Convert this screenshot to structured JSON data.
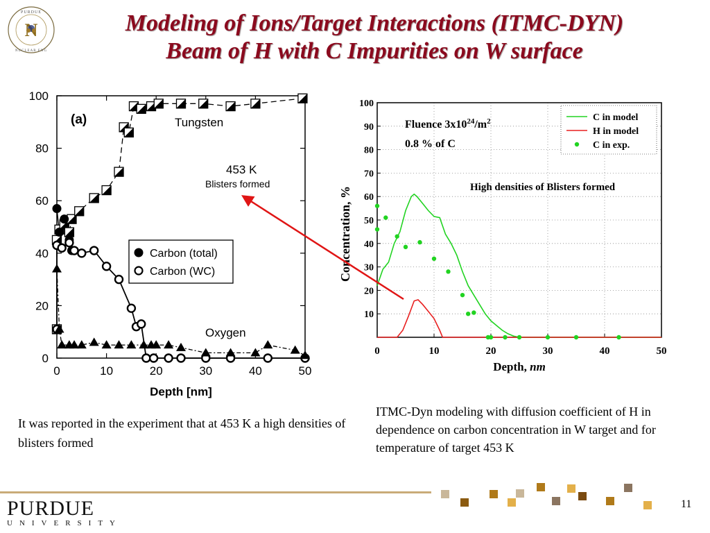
{
  "slide": {
    "title_line1": "Modeling of Ions/Target Interactions (ITMC-DYN)",
    "title_line2": "Beam of H with C Impurities on W surface",
    "logo": {
      "icon": "purdue-nuclear-engineering-seal",
      "text": "PURDUE NUCLEAR ENGINEERING"
    },
    "caption_left": "It was reported in the experiment that at 453 K a high densities of blisters formed",
    "caption_right": "ITMC-Dyn modeling with diffusion coefficient of H in dependence on carbon concentration in W target and for temperature of target 453 K",
    "page_number": "11",
    "footer": {
      "university": "PURDUE",
      "university_sub": "UNIVERSITY"
    },
    "colors": {
      "title": "#8b0a1e",
      "arrow": "#e01515",
      "green": "#21d321",
      "red": "#e81f1f",
      "gold": "#c9ab78"
    }
  },
  "chart_data": [
    {
      "type": "scatter",
      "panel_label": "(a)",
      "xlabel": "Depth [nm]",
      "ylabel": "",
      "xlim": [
        0,
        50
      ],
      "ylim": [
        0,
        100
      ],
      "x_ticks": [
        "0",
        "10",
        "20",
        "30",
        "40",
        "50"
      ],
      "y_ticks": [
        "0",
        "20",
        "40",
        "60",
        "80",
        "100"
      ],
      "annotations": [
        "Tungsten",
        "453 K",
        "Blisters formed",
        "Oxygen"
      ],
      "legend": [
        "Carbon (total)",
        "Carbon (WC)"
      ],
      "legend_position": "center-right",
      "series": [
        {
          "name": "Tungsten",
          "marker": "half-filled-square",
          "points": [
            [
              0,
              11
            ],
            [
              0,
              45
            ],
            [
              0.5,
              49
            ],
            [
              1.5,
              51
            ],
            [
              2.5,
              48
            ],
            [
              3,
              53
            ],
            [
              4.5,
              56
            ],
            [
              7.5,
              61
            ],
            [
              10,
              64
            ],
            [
              12.5,
              71
            ],
            [
              13.5,
              88
            ],
            [
              14.5,
              86
            ],
            [
              15.5,
              96
            ],
            [
              17,
              95
            ],
            [
              19,
              96
            ],
            [
              20.5,
              97
            ],
            [
              25,
              97
            ],
            [
              29.5,
              97
            ],
            [
              35,
              96
            ],
            [
              40,
              97
            ],
            [
              49.5,
              99
            ]
          ]
        },
        {
          "name": "Carbon (total)",
          "marker": "filled-circle",
          "points": [
            [
              0,
              57
            ],
            [
              0.5,
              48
            ],
            [
              1.5,
              53
            ],
            [
              2.5,
              45
            ],
            [
              3,
              41
            ],
            [
              5,
              40
            ]
          ]
        },
        {
          "name": "Carbon (WC)",
          "marker": "open-circle",
          "points": [
            [
              0,
              11
            ],
            [
              0,
              43
            ],
            [
              1,
              42
            ],
            [
              2.5,
              44
            ],
            [
              3.5,
              41
            ],
            [
              5,
              40
            ],
            [
              7.5,
              41
            ],
            [
              10,
              35
            ],
            [
              12.5,
              30
            ],
            [
              15,
              19
            ],
            [
              16,
              12
            ],
            [
              17,
              13
            ],
            [
              18,
              0
            ],
            [
              19.5,
              0
            ],
            [
              22.5,
              0
            ],
            [
              25,
              0
            ],
            [
              30,
              0
            ],
            [
              35,
              0
            ],
            [
              42.5,
              0
            ],
            [
              50,
              0
            ]
          ]
        },
        {
          "name": "Oxygen",
          "marker": "filled-triangle",
          "points": [
            [
              0,
              34
            ],
            [
              0.5,
              11
            ],
            [
              1,
              5
            ],
            [
              2.5,
              5
            ],
            [
              3.5,
              5
            ],
            [
              5,
              5
            ],
            [
              7.5,
              6
            ],
            [
              10,
              5
            ],
            [
              12.5,
              5
            ],
            [
              15,
              5
            ],
            [
              17.5,
              5
            ],
            [
              19,
              5
            ],
            [
              20,
              5
            ],
            [
              22.5,
              5
            ],
            [
              25,
              4
            ],
            [
              30,
              2
            ],
            [
              35,
              2
            ],
            [
              40,
              2
            ],
            [
              42.5,
              5
            ],
            [
              48,
              3
            ],
            [
              50,
              1
            ]
          ]
        }
      ]
    },
    {
      "type": "line",
      "xlabel": "Depth, nm",
      "ylabel": "Concentration, %",
      "xlim": [
        0,
        50
      ],
      "ylim": [
        0,
        100
      ],
      "x_ticks": [
        "0",
        "10",
        "20",
        "30",
        "40",
        "50"
      ],
      "y_ticks": [
        "10",
        "20",
        "30",
        "40",
        "50",
        "60",
        "70",
        "80",
        "90",
        "100"
      ],
      "annotations": [
        "High densities of Blisters formed",
        "Fluence 3x10",
        "24",
        "/m",
        "2",
        "0.8 % of C"
      ],
      "legend_position": "top-right",
      "series": [
        {
          "name": "C in model",
          "style": "line",
          "color": "#21d321",
          "points": [
            [
              0,
              22
            ],
            [
              1,
              29
            ],
            [
              2,
              32
            ],
            [
              3,
              40
            ],
            [
              4,
              45
            ],
            [
              5,
              54
            ],
            [
              6,
              60
            ],
            [
              6.5,
              61
            ],
            [
              7,
              60
            ],
            [
              8,
              57
            ],
            [
              9,
              54
            ],
            [
              10,
              51.5
            ],
            [
              11,
              51
            ],
            [
              12,
              44
            ],
            [
              13,
              40
            ],
            [
              14,
              35
            ],
            [
              15,
              28
            ],
            [
              16,
              22
            ],
            [
              17,
              18
            ],
            [
              18,
              14
            ],
            [
              19,
              10
            ],
            [
              20,
              7
            ],
            [
              21,
              5
            ],
            [
              22,
              3
            ],
            [
              23,
              1.5
            ],
            [
              24,
              0.5
            ],
            [
              25,
              0
            ],
            [
              50,
              0
            ]
          ]
        },
        {
          "name": "H in model",
          "style": "line",
          "color": "#e81f1f",
          "points": [
            [
              0,
              0
            ],
            [
              3.5,
              0
            ],
            [
              4.5,
              3
            ],
            [
              5.5,
              9
            ],
            [
              6.5,
              15.5
            ],
            [
              7.2,
              16
            ],
            [
              8,
              14
            ],
            [
              9,
              11
            ],
            [
              10,
              8
            ],
            [
              11,
              3
            ],
            [
              11.5,
              0
            ],
            [
              50,
              0
            ]
          ]
        },
        {
          "name": "C in exp.",
          "style": "dots",
          "color": "#21d321",
          "points": [
            [
              0,
              56
            ],
            [
              0,
              46
            ],
            [
              1.5,
              51
            ],
            [
              3.5,
              43
            ],
            [
              5,
              38.5
            ],
            [
              7.5,
              40.5
            ],
            [
              10,
              33.5
            ],
            [
              12.5,
              28
            ],
            [
              15,
              18
            ],
            [
              16,
              10
            ],
            [
              17,
              10.5
            ],
            [
              19.5,
              0
            ],
            [
              20,
              0
            ],
            [
              22.5,
              0
            ],
            [
              25,
              0
            ],
            [
              30,
              0
            ],
            [
              35,
              0
            ],
            [
              42.5,
              0
            ]
          ]
        }
      ]
    }
  ]
}
